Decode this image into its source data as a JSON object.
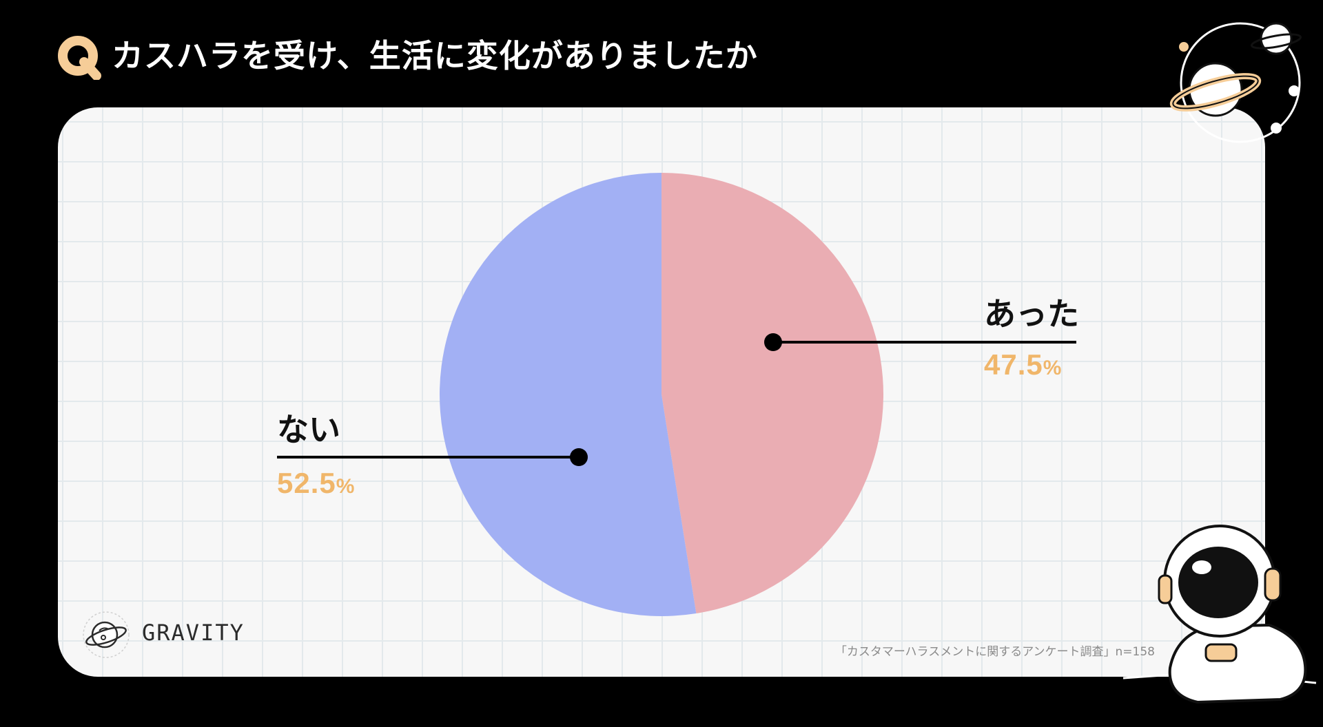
{
  "header": {
    "q_letter": "Q",
    "title": "カスハラを受け、生活に変化がありましたか"
  },
  "chart_data": {
    "type": "pie",
    "title": "カスハラを受け、生活に変化がありましたか",
    "slices": [
      {
        "label": "あった",
        "value": 47.5,
        "value_text": "47.5",
        "color": "#eaadb3"
      },
      {
        "label": "ない",
        "value": 52.5,
        "value_text": "52.5",
        "color": "#a2b0f4"
      }
    ],
    "unit": "%",
    "start": "12 o'clock",
    "direction": "clockwise",
    "legend": "none"
  },
  "footer": {
    "source": "「カスタマーハラスメントに関するアンケート調査」n=158",
    "brand": "GRAVITY"
  },
  "colors": {
    "background": "#000000",
    "panel": "#f7f7f7",
    "grid": "#e3e9ec",
    "accent": "#f6cd98",
    "percent": "#f0b66a"
  },
  "icons": {
    "q_badge": "q-badge-icon",
    "logo": "planet-logo-icon",
    "planets": "planets-decoration",
    "astronaut": "astronaut-illustration"
  }
}
